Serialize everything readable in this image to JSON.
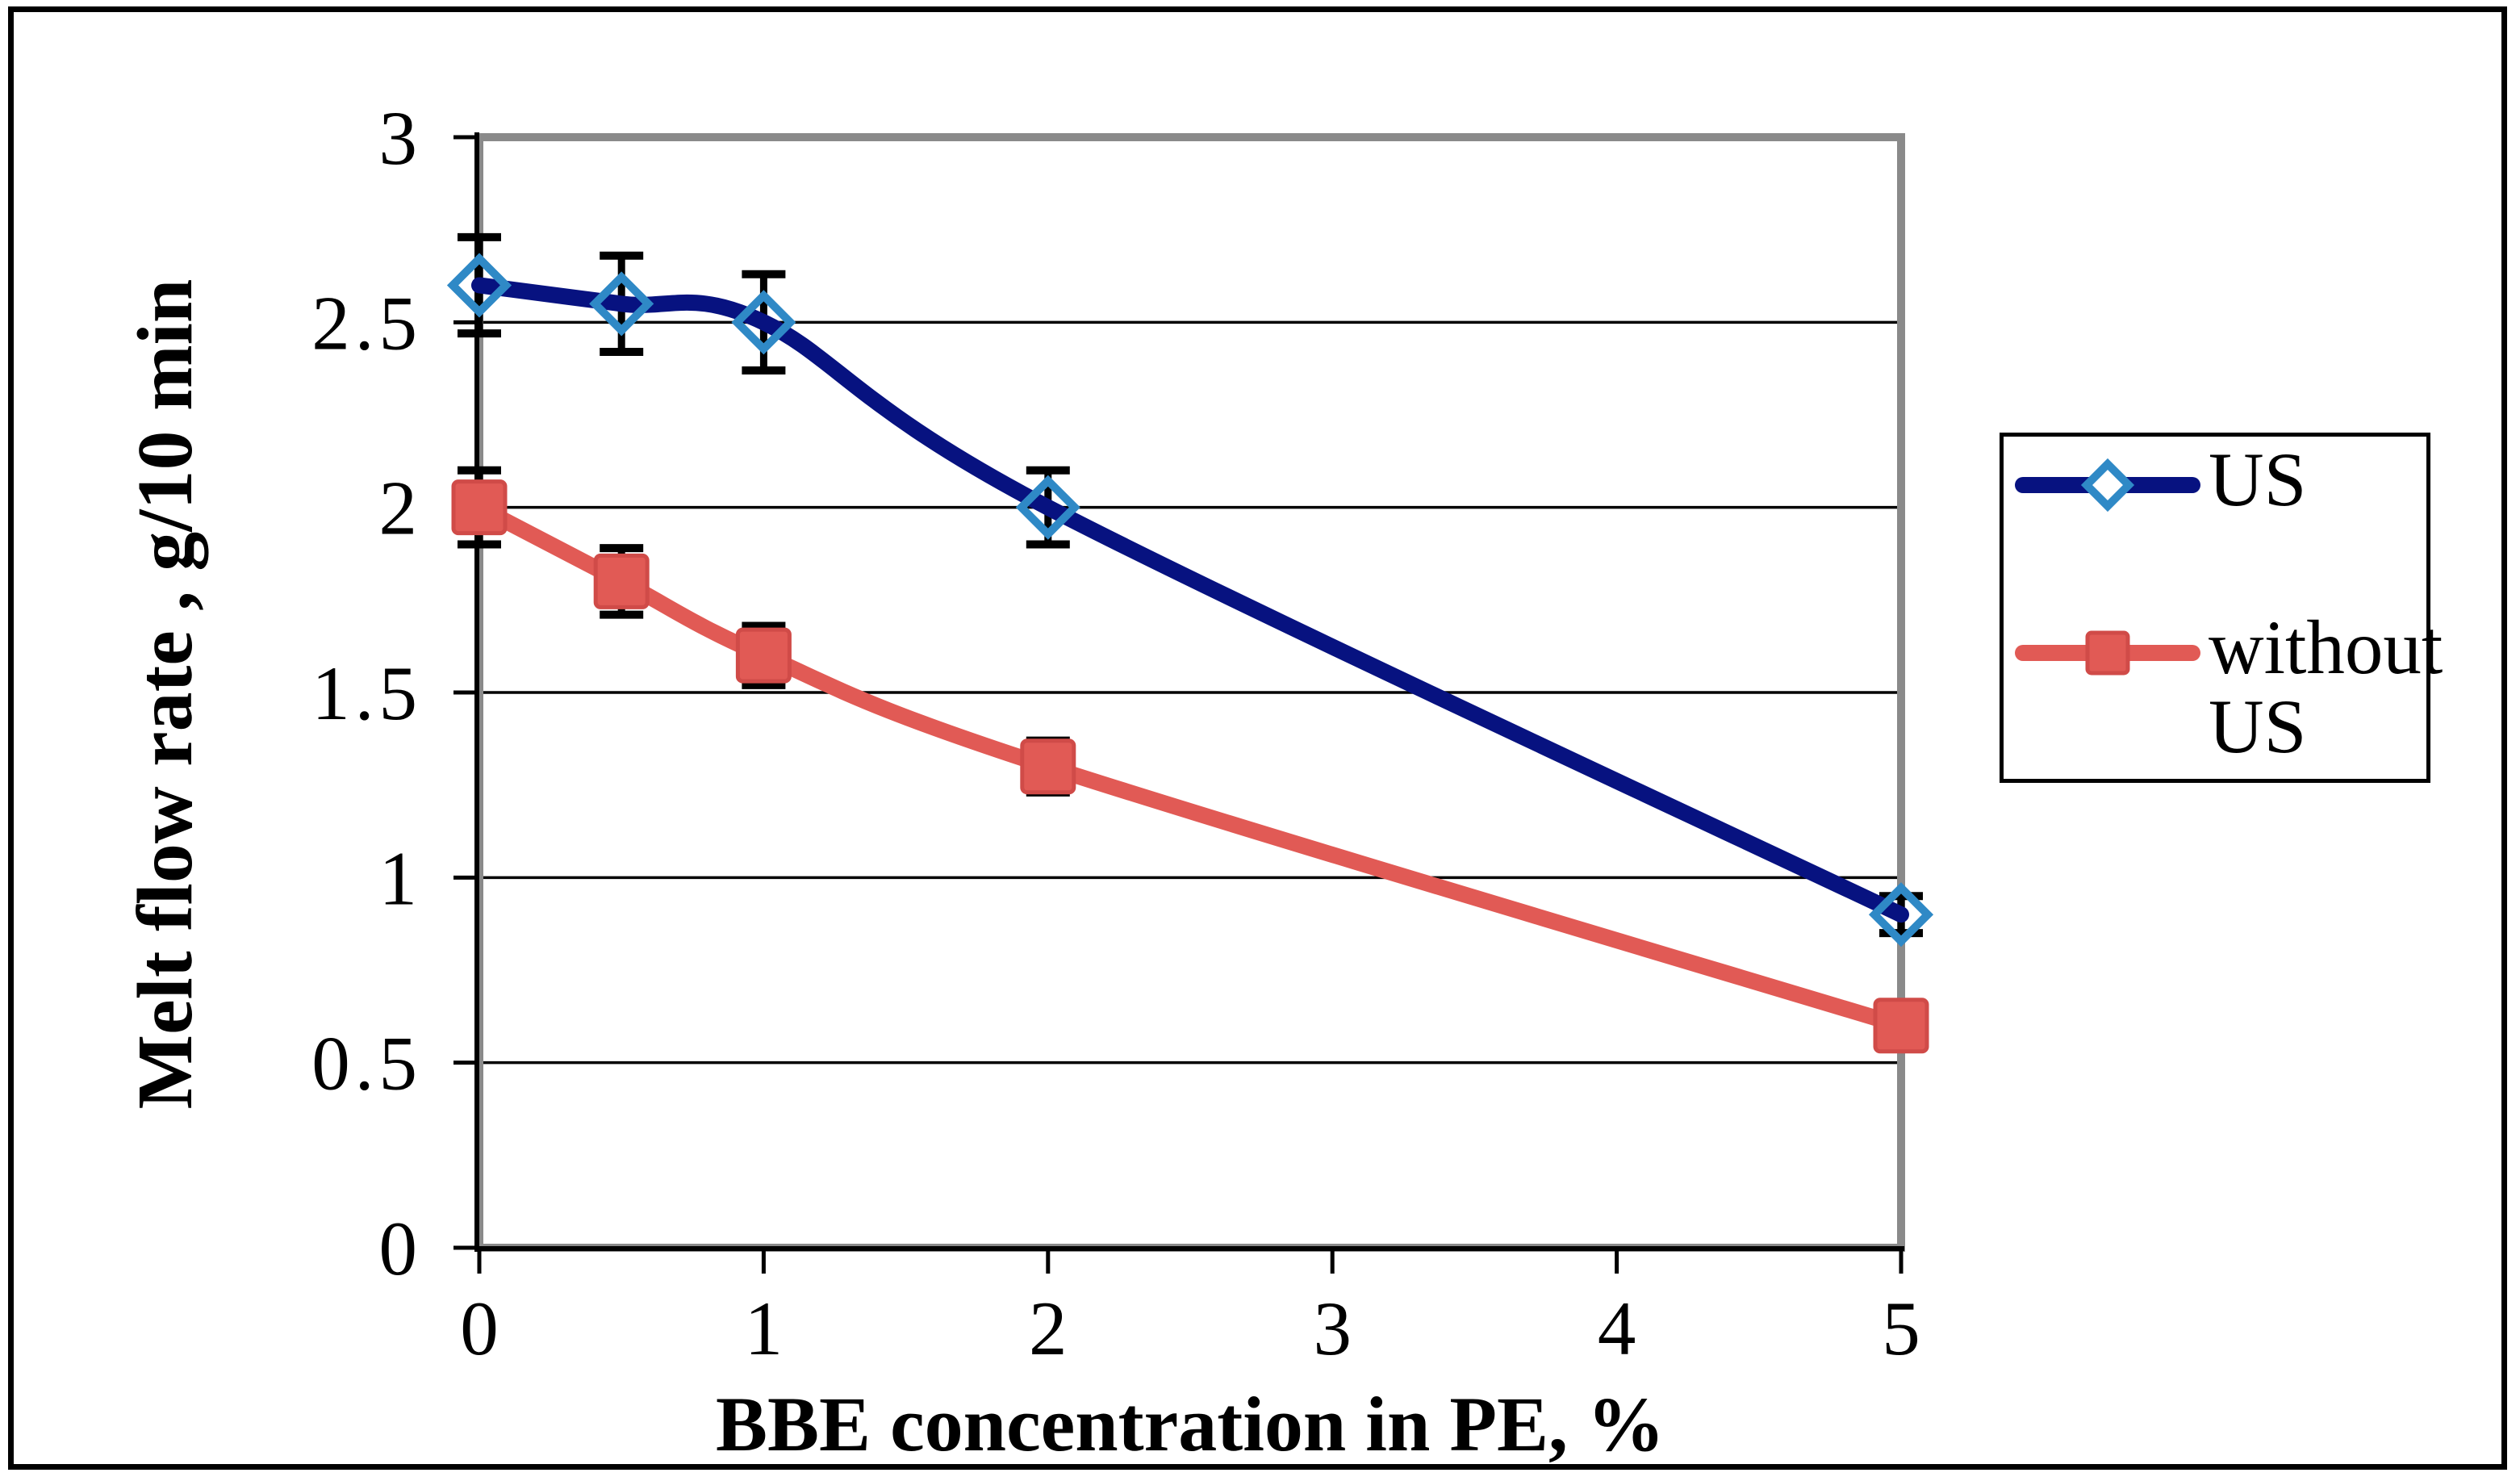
{
  "chart_data": {
    "type": "line",
    "title": "",
    "xlabel": "BBE concentration in PE, %",
    "ylabel": "Melt flow rate , g/10 min",
    "xlim": [
      0,
      5
    ],
    "ylim": [
      0,
      3
    ],
    "x_ticks": [
      "0",
      "1",
      "2",
      "3",
      "4",
      "5"
    ],
    "x_tick_values": [
      0,
      1,
      2,
      3,
      4,
      5
    ],
    "y_ticks": [
      "0",
      "0.5",
      "1",
      "1.5",
      "2",
      "2.5",
      "3"
    ],
    "y_tick_values": [
      0,
      0.5,
      1,
      1.5,
      2,
      2.5,
      3
    ],
    "grid": "horizontal-solid-black",
    "legend_position": "right",
    "line_style": "smoothed-with-error-bars",
    "x": [
      0,
      0.5,
      1,
      2,
      5
    ],
    "series": [
      {
        "name": "US",
        "values": [
          2.6,
          2.55,
          2.5,
          2.0,
          0.9
        ],
        "errors": [
          0.13,
          0.13,
          0.13,
          0.1,
          0.05
        ],
        "color": "#071280",
        "marker": "diamond-open",
        "marker_color": "#2F89C6"
      },
      {
        "name": "without US",
        "values": [
          2.0,
          1.8,
          1.6,
          1.3,
          0.6
        ],
        "errors": [
          0.1,
          0.09,
          0.08,
          0.07,
          0.05
        ],
        "color": "#E15A55",
        "marker": "square-filled",
        "marker_color": "#E15A55",
        "marker_stroke": "#D04B48"
      }
    ],
    "colors": {
      "plot_border_gray": "#8A8A8A",
      "gridline": "#000000",
      "axis": "#000000",
      "error_bar": "#000000",
      "background": "#FFFFFF",
      "outer_border": "#000000"
    }
  }
}
